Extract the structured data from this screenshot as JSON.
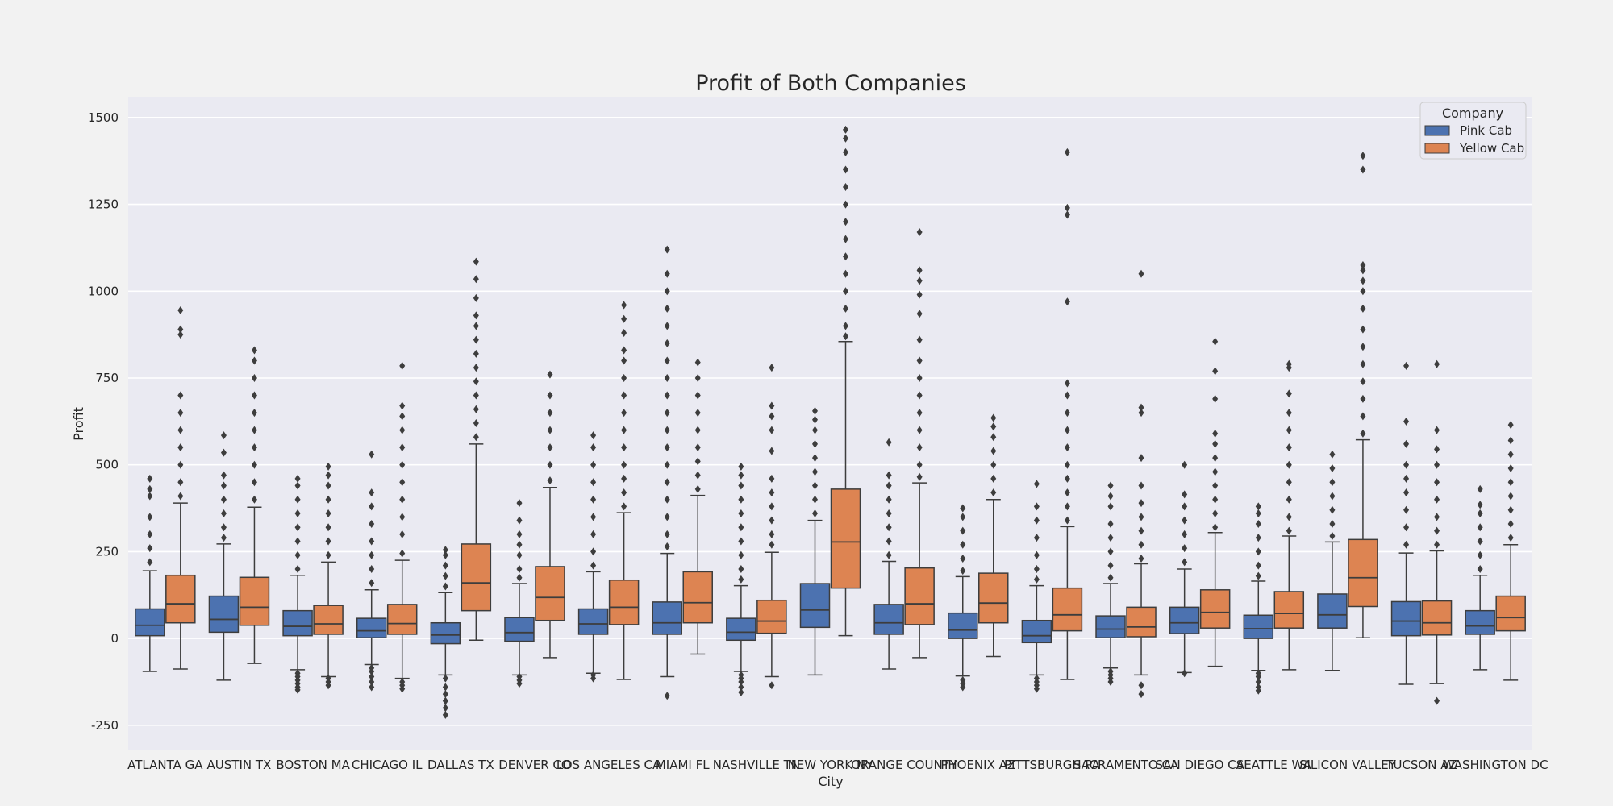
{
  "chart_data": {
    "type": "box",
    "title": "Profit of Both Companies",
    "xlabel": "City",
    "ylabel": "Profit",
    "ylim": [
      -320,
      1560
    ],
    "yticks": [
      -250,
      0,
      250,
      500,
      750,
      1000,
      1250,
      1500
    ],
    "grid": true,
    "legend": {
      "title": "Company",
      "position": "top-right"
    },
    "categories": [
      "ATLANTA GA",
      "AUSTIN TX",
      "BOSTON MA",
      "CHICAGO IL",
      "DALLAS TX",
      "DENVER CO",
      "LOS ANGELES CA",
      "MIAMI FL",
      "NASHVILLE TN",
      "NEW YORK NY",
      "ORANGE COUNTY",
      "PHOENIX AZ",
      "PITTSBURGH PA",
      "SACRAMENTO CA",
      "SAN DIEGO CA",
      "SEATTLE WA",
      "SILICON VALLEY",
      "TUCSON AZ",
      "WASHINGTON DC"
    ],
    "series": [
      {
        "name": "Pink Cab",
        "color": "#4c72b0",
        "boxes": [
          {
            "whislo": -95,
            "q1": 8,
            "med": 38,
            "q3": 85,
            "whishi": 195,
            "fliers_low": [],
            "fliers_high": [
              220,
              260,
              300,
              350,
              410,
              430,
              460
            ]
          },
          {
            "whislo": -120,
            "q1": 18,
            "med": 55,
            "q3": 122,
            "whishi": 272,
            "fliers_low": [],
            "fliers_high": [
              290,
              320,
              360,
              400,
              440,
              470,
              535,
              585
            ]
          },
          {
            "whislo": -90,
            "q1": 8,
            "med": 35,
            "q3": 80,
            "whishi": 182,
            "fliers_low": [
              -100,
              -110,
              -120,
              -130,
              -140,
              -148
            ],
            "fliers_high": [
              200,
              240,
              280,
              320,
              360,
              400,
              440,
              460
            ]
          },
          {
            "whislo": -75,
            "q1": 2,
            "med": 22,
            "q3": 58,
            "whishi": 140,
            "fliers_low": [
              -85,
              -95,
              -110,
              -125,
              -140
            ],
            "fliers_high": [
              160,
              200,
              240,
              280,
              330,
              380,
              420,
              530
            ]
          },
          {
            "whislo": -105,
            "q1": -15,
            "med": 10,
            "q3": 45,
            "whishi": 132,
            "fliers_low": [
              -115,
              -140,
              -160,
              -180,
              -200,
              -220
            ],
            "fliers_high": [
              150,
              180,
              210,
              240,
              255
            ]
          },
          {
            "whislo": -105,
            "q1": -8,
            "med": 17,
            "q3": 60,
            "whishi": 158,
            "fliers_low": [
              -110,
              -120,
              -130
            ],
            "fliers_high": [
              175,
              200,
              240,
              270,
              300,
              340,
              390
            ]
          },
          {
            "whislo": -100,
            "q1": 12,
            "med": 42,
            "q3": 85,
            "whishi": 192,
            "fliers_low": [
              -105,
              -115
            ],
            "fliers_high": [
              210,
              250,
              300,
              350,
              400,
              450,
              500,
              550,
              585
            ]
          },
          {
            "whislo": -110,
            "q1": 12,
            "med": 45,
            "q3": 105,
            "whishi": 245,
            "fliers_low": [
              -165
            ],
            "fliers_high": [
              265,
              300,
              350,
              400,
              450,
              500,
              550,
              600,
              650,
              700,
              750,
              800,
              850,
              900,
              950,
              1000,
              1050,
              1120
            ]
          },
          {
            "whislo": -95,
            "q1": -5,
            "med": 18,
            "q3": 58,
            "whishi": 152,
            "fliers_low": [
              -105,
              -115,
              -125,
              -140,
              -155
            ],
            "fliers_high": [
              170,
              200,
              240,
              280,
              320,
              360,
              400,
              440,
              470,
              495
            ]
          },
          {
            "whislo": -105,
            "q1": 32,
            "med": 82,
            "q3": 158,
            "whishi": 340,
            "fliers_low": [],
            "fliers_high": [
              360,
              400,
              440,
              480,
              520,
              560,
              600,
              630,
              655
            ]
          },
          {
            "whislo": -88,
            "q1": 12,
            "med": 45,
            "q3": 98,
            "whishi": 222,
            "fliers_low": [],
            "fliers_high": [
              240,
              280,
              320,
              360,
              400,
              440,
              470,
              565
            ]
          },
          {
            "whislo": -108,
            "q1": 0,
            "med": 24,
            "q3": 73,
            "whishi": 178,
            "fliers_low": [
              -120,
              -130,
              -140
            ],
            "fliers_high": [
              195,
              230,
              270,
              310,
              350,
              375
            ]
          },
          {
            "whislo": -105,
            "q1": -12,
            "med": 8,
            "q3": 52,
            "whishi": 152,
            "fliers_low": [
              -115,
              -125,
              -135,
              -145
            ],
            "fliers_high": [
              170,
              200,
              240,
              290,
              340,
              380,
              445
            ]
          },
          {
            "whislo": -85,
            "q1": 2,
            "med": 27,
            "q3": 65,
            "whishi": 158,
            "fliers_low": [
              -95,
              -105,
              -115,
              -125
            ],
            "fliers_high": [
              175,
              210,
              250,
              290,
              330,
              380,
              410,
              440
            ]
          },
          {
            "whislo": -98,
            "q1": 14,
            "med": 45,
            "q3": 90,
            "whishi": 200,
            "fliers_low": [
              -100
            ],
            "fliers_high": [
              220,
              260,
              300,
              340,
              380,
              415,
              500
            ]
          },
          {
            "whislo": -92,
            "q1": 0,
            "med": 28,
            "q3": 67,
            "whishi": 165,
            "fliers_low": [
              -100,
              -110,
              -125,
              -140,
              -150
            ],
            "fliers_high": [
              180,
              210,
              250,
              290,
              330,
              360,
              380
            ]
          },
          {
            "whislo": -92,
            "q1": 30,
            "med": 68,
            "q3": 128,
            "whishi": 278,
            "fliers_low": [],
            "fliers_high": [
              295,
              330,
              370,
              410,
              450,
              490,
              530
            ]
          },
          {
            "whislo": -132,
            "q1": 8,
            "med": 50,
            "q3": 106,
            "whishi": 246,
            "fliers_low": [],
            "fliers_high": [
              270,
              320,
              370,
              420,
              460,
              500,
              560,
              625,
              785
            ]
          },
          {
            "whislo": -90,
            "q1": 12,
            "med": 36,
            "q3": 80,
            "whishi": 182,
            "fliers_low": [],
            "fliers_high": [
              200,
              240,
              280,
              320,
              360,
              385,
              430
            ]
          }
        ]
      },
      {
        "name": "Yellow Cab",
        "color": "#dd8452",
        "boxes": [
          {
            "whislo": -88,
            "q1": 45,
            "med": 100,
            "q3": 182,
            "whishi": 390,
            "fliers_low": [],
            "fliers_high": [
              410,
              450,
              500,
              550,
              600,
              650,
              700,
              875,
              890,
              945
            ]
          },
          {
            "whislo": -72,
            "q1": 38,
            "med": 90,
            "q3": 176,
            "whishi": 378,
            "fliers_low": [],
            "fliers_high": [
              400,
              450,
              500,
              550,
              600,
              650,
              700,
              750,
              800,
              830
            ]
          },
          {
            "whislo": -110,
            "q1": 12,
            "med": 42,
            "q3": 95,
            "whishi": 220,
            "fliers_low": [
              -115,
              -125,
              -135
            ],
            "fliers_high": [
              240,
              280,
              320,
              360,
              400,
              440,
              470,
              495
            ]
          },
          {
            "whislo": -115,
            "q1": 12,
            "med": 43,
            "q3": 98,
            "whishi": 225,
            "fliers_low": [
              -125,
              -135,
              -145
            ],
            "fliers_high": [
              245,
              300,
              350,
              400,
              450,
              500,
              550,
              600,
              640,
              670,
              785
            ]
          },
          {
            "whislo": -5,
            "q1": 80,
            "med": 160,
            "q3": 272,
            "whishi": 560,
            "fliers_low": [],
            "fliers_high": [
              580,
              620,
              660,
              700,
              740,
              780,
              820,
              860,
              900,
              930,
              980,
              1035,
              1085
            ]
          },
          {
            "whislo": -55,
            "q1": 52,
            "med": 118,
            "q3": 207,
            "whishi": 435,
            "fliers_low": [],
            "fliers_high": [
              455,
              500,
              550,
              600,
              650,
              700,
              760
            ]
          },
          {
            "whislo": -118,
            "q1": 40,
            "med": 90,
            "q3": 168,
            "whishi": 362,
            "fliers_low": [],
            "fliers_high": [
              380,
              420,
              460,
              500,
              550,
              600,
              650,
              700,
              750,
              800,
              830,
              880,
              920,
              960
            ]
          },
          {
            "whislo": -45,
            "q1": 45,
            "med": 103,
            "q3": 192,
            "whishi": 412,
            "fliers_low": [],
            "fliers_high": [
              430,
              470,
              510,
              550,
              600,
              650,
              700,
              750,
              795
            ]
          },
          {
            "whislo": -110,
            "q1": 15,
            "med": 50,
            "q3": 110,
            "whishi": 248,
            "fliers_low": [
              -135
            ],
            "fliers_high": [
              270,
              300,
              340,
              380,
              420,
              460,
              540,
              600,
              640,
              670,
              780
            ]
          },
          {
            "whislo": 8,
            "q1": 145,
            "med": 278,
            "q3": 430,
            "whishi": 855,
            "fliers_low": [],
            "fliers_high": [
              870,
              900,
              950,
              1000,
              1050,
              1100,
              1150,
              1200,
              1250,
              1300,
              1350,
              1400,
              1440,
              1465
            ]
          },
          {
            "whislo": -55,
            "q1": 40,
            "med": 100,
            "q3": 203,
            "whishi": 448,
            "fliers_low": [],
            "fliers_high": [
              465,
              500,
              550,
              600,
              650,
              700,
              750,
              800,
              860,
              935,
              990,
              1030,
              1060,
              1170
            ]
          },
          {
            "whislo": -52,
            "q1": 45,
            "med": 102,
            "q3": 188,
            "whishi": 400,
            "fliers_low": [],
            "fliers_high": [
              420,
              460,
              500,
              540,
              580,
              610,
              635
            ]
          },
          {
            "whislo": -118,
            "q1": 22,
            "med": 68,
            "q3": 145,
            "whishi": 322,
            "fliers_low": [],
            "fliers_high": [
              340,
              380,
              420,
              460,
              500,
              550,
              600,
              650,
              700,
              735,
              970,
              1220,
              1240,
              1400
            ]
          },
          {
            "whislo": -105,
            "q1": 5,
            "med": 33,
            "q3": 90,
            "whishi": 215,
            "fliers_low": [
              -135,
              -160
            ],
            "fliers_high": [
              230,
              270,
              310,
              350,
              390,
              440,
              520,
              650,
              665,
              1050
            ]
          },
          {
            "whislo": -80,
            "q1": 30,
            "med": 75,
            "q3": 140,
            "whishi": 305,
            "fliers_low": [],
            "fliers_high": [
              320,
              360,
              400,
              440,
              480,
              520,
              560,
              590,
              690,
              770,
              855
            ]
          },
          {
            "whislo": -90,
            "q1": 30,
            "med": 72,
            "q3": 135,
            "whishi": 295,
            "fliers_low": [],
            "fliers_high": [
              310,
              350,
              400,
              450,
              500,
              550,
              600,
              650,
              705,
              780,
              790
            ]
          },
          {
            "whislo": 2,
            "q1": 92,
            "med": 175,
            "q3": 285,
            "whishi": 572,
            "fliers_low": [],
            "fliers_high": [
              590,
              640,
              690,
              740,
              790,
              840,
              890,
              950,
              1000,
              1030,
              1060,
              1075,
              1350,
              1390
            ]
          },
          {
            "whislo": -130,
            "q1": 10,
            "med": 45,
            "q3": 108,
            "whishi": 252,
            "fliers_low": [
              -180
            ],
            "fliers_high": [
              270,
              310,
              350,
              400,
              450,
              500,
              545,
              600,
              790
            ]
          },
          {
            "whislo": -120,
            "q1": 22,
            "med": 60,
            "q3": 122,
            "whishi": 270,
            "fliers_low": [],
            "fliers_high": [
              290,
              330,
              370,
              410,
              450,
              490,
              530,
              570,
              615
            ]
          }
        ]
      }
    ]
  }
}
